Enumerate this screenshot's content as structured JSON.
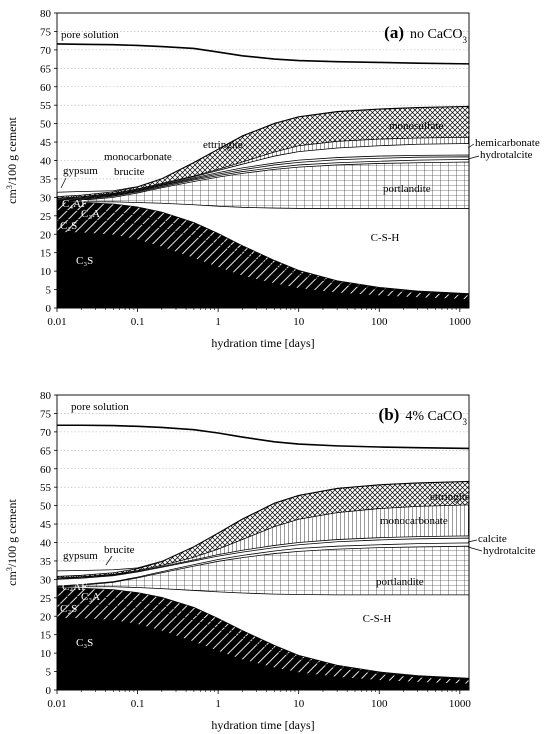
{
  "chart_data": [
    {
      "type": "area",
      "title": "no CaCO",
      "title_panel": "(a)",
      "title_sub": "3",
      "xlabel": "hydration time [days]",
      "ylabel": "cm",
      "ylabel_sup": "3",
      "ylabel_rest": "/100 g cement",
      "x_scale": "log",
      "xlim": [
        0.01,
        1300
      ],
      "ylim": [
        0,
        80
      ],
      "x_ticks": [
        0.01,
        0.1,
        1,
        10,
        100,
        1000
      ],
      "x_tick_labels": [
        "0.01",
        "0.1",
        "1",
        "10",
        "100",
        "1000"
      ],
      "y_ticks": [
        0,
        5,
        10,
        15,
        20,
        25,
        30,
        35,
        40,
        45,
        50,
        55,
        60,
        65,
        70,
        75,
        80
      ],
      "y_tick_labels": [
        "0",
        "5",
        "10",
        "15",
        "20",
        "25",
        "30",
        "35",
        "40",
        "45",
        "50",
        "55",
        "60",
        "65",
        "70",
        "75",
        "80"
      ],
      "grid": "horizontal dotted",
      "x": [
        0.01,
        0.02,
        0.05,
        0.1,
        0.2,
        0.5,
        1,
        2,
        5,
        10,
        30,
        100,
        300,
        1300
      ],
      "layers": [
        {
          "name": "C3S",
          "fill": "solid",
          "top": [
            20.5,
            20.4,
            19.8,
            18.5,
            16.5,
            13.5,
            11.0,
            8.7,
            6.6,
            5.3,
            4.1,
            3.3,
            2.8,
            2.3
          ]
        },
        {
          "name": "C2S",
          "fill": "diag",
          "top": [
            24.0,
            24.0,
            23.6,
            22.9,
            21.7,
            19.6,
            17.2,
            14.6,
            11.3,
            9.0,
            6.6,
            5.0,
            4.2,
            3.5
          ]
        },
        {
          "name": "C3A",
          "fill": "diag",
          "top": [
            26.5,
            26.4,
            26.0,
            25.2,
            23.8,
            21.3,
            18.6,
            15.6,
            12.0,
            9.5,
            7.0,
            5.3,
            4.4,
            3.7
          ]
        },
        {
          "name": "C4AF",
          "fill": "diag",
          "top": [
            28.8,
            28.6,
            28.2,
            27.4,
            26.0,
            23.2,
            20.2,
            16.9,
            12.9,
            10.2,
            7.4,
            5.6,
            4.6,
            3.9
          ]
        },
        {
          "name": "C-S-H",
          "fill": "white",
          "top": [
            28.8,
            28.8,
            28.8,
            28.6,
            28.4,
            28.0,
            27.6,
            27.3,
            27.1,
            27.0,
            27.0,
            27.0,
            27.0,
            27.0
          ]
        },
        {
          "name": "portlandite",
          "fill": "grid",
          "top": [
            28.8,
            29.2,
            30.0,
            31.2,
            32.6,
            34.3,
            35.5,
            36.5,
            37.6,
            38.2,
            38.8,
            39.2,
            39.4,
            39.6
          ]
        },
        {
          "name": "hydrotalcite",
          "fill": "white",
          "top": [
            29.0,
            29.4,
            30.3,
            31.5,
            32.9,
            34.7,
            35.9,
            37.0,
            38.1,
            38.8,
            39.4,
            39.8,
            40.1,
            40.3
          ]
        },
        {
          "name": "hemicarbonate",
          "fill": "white",
          "top": [
            29.2,
            29.6,
            30.5,
            31.7,
            33.2,
            35.0,
            36.3,
            37.5,
            38.8,
            39.5,
            40.2,
            40.6,
            40.9,
            41.0
          ]
        },
        {
          "name": "brucite",
          "fill": "white",
          "top": [
            29.4,
            29.8,
            30.7,
            31.9,
            33.4,
            35.3,
            36.7,
            38.0,
            39.3,
            40.1,
            40.8,
            41.2,
            41.4,
            41.5
          ]
        },
        {
          "name": "monocarbonate",
          "fill": "white",
          "top": [
            29.6,
            30.0,
            30.9,
            32.1,
            33.6,
            35.6,
            37.3,
            39.0,
            41.2,
            42.4,
            43.4,
            44.0,
            44.4,
            44.6
          ]
        },
        {
          "name": "monosulfate",
          "fill": "vlines",
          "top": [
            29.8,
            30.2,
            31.1,
            32.3,
            33.8,
            35.8,
            37.6,
            39.6,
            42.3,
            44.0,
            45.2,
            45.8,
            46.1,
            46.3
          ]
        },
        {
          "name": "ettringite",
          "fill": "cross",
          "top": [
            30.2,
            30.6,
            31.5,
            32.8,
            35.0,
            39.4,
            43.0,
            46.6,
            50.0,
            51.8,
            53.2,
            53.9,
            54.3,
            54.6
          ]
        },
        {
          "name": "gypsum",
          "fill": "white",
          "top": [
            31.4,
            31.6,
            31.8,
            32.9,
            35.1,
            39.5,
            43.1,
            46.7,
            50.1,
            51.9,
            53.3,
            54.0,
            54.4,
            54.7
          ]
        }
      ],
      "pore_solution": [
        71.6,
        71.5,
        71.4,
        71.2,
        70.9,
        70.4,
        69.4,
        68.4,
        67.5,
        67.1,
        66.8,
        66.6,
        66.4,
        66.2
      ],
      "annotations": {
        "pore": "pore solution",
        "gypsum": "gypsum",
        "c4af": "C₄AF",
        "c3a": "C₃A",
        "c2s": "C₂S",
        "c3s": "C₃S",
        "csh": "C-S-H",
        "monocarbonate": "monocarbonate",
        "brucite": "brucite",
        "ettringite": "ettringite",
        "monosulfate": "monosulfate",
        "hemicarbonate": "hemicarbonate",
        "hydrotalcite": "hydrotalcite",
        "portlandite": "portlandite"
      }
    },
    {
      "type": "area",
      "title": "4% CaCO",
      "title_panel": "(b)",
      "title_sub": "3",
      "xlabel": "hydration time [days]",
      "ylabel": "cm",
      "ylabel_sup": "3",
      "ylabel_rest": "/100 g cement",
      "x_scale": "log",
      "xlim": [
        0.01,
        1300
      ],
      "ylim": [
        0,
        80
      ],
      "x_ticks": [
        0.01,
        0.1,
        1,
        10,
        100,
        1000
      ],
      "x_tick_labels": [
        "0.01",
        "0.1",
        "1",
        "10",
        "100",
        "1000"
      ],
      "y_ticks": [
        0,
        5,
        10,
        15,
        20,
        25,
        30,
        35,
        40,
        45,
        50,
        55,
        60,
        65,
        70,
        75,
        80
      ],
      "y_tick_labels": [
        "0",
        "5",
        "10",
        "15",
        "20",
        "25",
        "30",
        "35",
        "40",
        "45",
        "50",
        "55",
        "60",
        "65",
        "70",
        "75",
        "80"
      ],
      "grid": "horizontal dotted",
      "x": [
        0.01,
        0.02,
        0.05,
        0.1,
        0.2,
        0.5,
        1,
        2,
        5,
        10,
        30,
        100,
        300,
        1300
      ],
      "layers": [
        {
          "name": "C3S",
          "fill": "solid",
          "top": [
            19.5,
            19.4,
            18.9,
            17.8,
            16.0,
            13.0,
            10.5,
            8.2,
            6.0,
            4.7,
            3.5,
            2.6,
            2.1,
            1.6
          ]
        },
        {
          "name": "C2S",
          "fill": "diag",
          "top": [
            23.3,
            23.3,
            22.9,
            22.2,
            21.1,
            19.0,
            16.6,
            14.0,
            10.7,
            8.4,
            6.0,
            4.4,
            3.5,
            2.8
          ]
        },
        {
          "name": "C3A",
          "fill": "diag",
          "top": [
            25.5,
            25.4,
            25.0,
            24.2,
            22.9,
            20.5,
            17.8,
            14.9,
            11.3,
            8.8,
            6.3,
            4.6,
            3.7,
            3.0
          ]
        },
        {
          "name": "C4AF",
          "fill": "diag",
          "top": [
            27.8,
            27.6,
            27.2,
            26.4,
            25.1,
            22.4,
            19.4,
            16.1,
            12.1,
            9.4,
            6.7,
            4.9,
            3.9,
            3.2
          ]
        },
        {
          "name": "C-S-H",
          "fill": "white",
          "top": [
            28.0,
            28.0,
            28.0,
            27.8,
            27.5,
            27.0,
            26.6,
            26.3,
            26.0,
            25.9,
            25.8,
            25.8,
            25.8,
            25.8
          ]
        },
        {
          "name": "portlandite",
          "fill": "grid",
          "top": [
            28.0,
            28.4,
            29.2,
            30.4,
            31.8,
            33.6,
            34.9,
            35.9,
            37.0,
            37.6,
            38.2,
            38.6,
            38.8,
            39.0
          ]
        },
        {
          "name": "hydrotalcite",
          "fill": "white",
          "top": [
            28.2,
            28.6,
            29.4,
            30.6,
            32.1,
            34.0,
            35.4,
            36.5,
            37.7,
            38.4,
            39.0,
            39.4,
            39.7,
            39.9
          ]
        },
        {
          "name": "calcite",
          "fill": "white",
          "top": [
            30.0,
            30.3,
            31.0,
            32.0,
            33.3,
            35.0,
            36.3,
            37.4,
            38.6,
            39.4,
            40.2,
            40.7,
            41.0,
            41.2
          ]
        },
        {
          "name": "brucite",
          "fill": "white",
          "top": [
            30.2,
            30.5,
            31.2,
            32.2,
            33.5,
            35.3,
            36.7,
            37.9,
            39.2,
            40.0,
            40.8,
            41.3,
            41.6,
            41.8
          ]
        },
        {
          "name": "monocarbonate",
          "fill": "vlines",
          "top": [
            30.4,
            30.7,
            31.4,
            32.4,
            33.8,
            36.0,
            38.2,
            40.8,
            44.3,
            46.3,
            48.1,
            49.2,
            49.8,
            50.2
          ]
        },
        {
          "name": "ettringite",
          "fill": "cross",
          "top": [
            30.8,
            31.1,
            31.8,
            32.9,
            34.8,
            38.8,
            42.5,
            46.3,
            50.6,
            52.7,
            54.6,
            55.6,
            56.1,
            56.5
          ]
        },
        {
          "name": "gypsum",
          "fill": "white",
          "top": [
            32.3,
            32.4,
            32.6,
            33.1,
            34.9,
            38.9,
            42.6,
            46.4,
            50.7,
            52.8,
            54.7,
            55.7,
            56.2,
            56.6
          ]
        }
      ],
      "pore_solution": [
        71.8,
        71.8,
        71.7,
        71.5,
        71.2,
        70.6,
        69.7,
        68.6,
        67.3,
        66.7,
        66.2,
        65.9,
        65.7,
        65.5
      ],
      "annotations": {
        "pore": "pore solution",
        "gypsum": "gypsum",
        "c4af": "C₄AF",
        "c3a": "C₃A",
        "c2s": "C₂S",
        "c3s": "C₃S",
        "csh": "C-S-H",
        "brucite": "brucite",
        "ettringite": "ettringite",
        "monocarbonate": "monocarbonate",
        "calcite": "calcite",
        "hydrotalcite": "hydrotalcite",
        "portlandite": "portlandite"
      }
    }
  ]
}
